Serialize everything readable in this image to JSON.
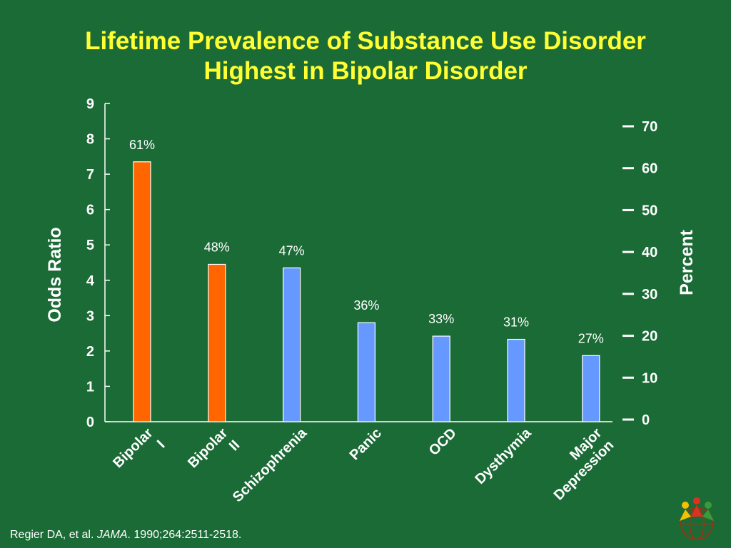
{
  "slide": {
    "title_line1": "Lifetime Prevalence of Substance Use Disorder",
    "title_line2": "Highest in Bipolar Disorder"
  },
  "citation": {
    "authors": "Regier DA, et al. ",
    "journal": "JAMA",
    "details": ". 1990;264:2511-2518."
  },
  "logo": {
    "icon": "people-globe-logo"
  },
  "colors": {
    "background": "#1b6b36",
    "title": "#ffff33",
    "bipolar_bar": "#ff6600",
    "other_bar": "#6699ff",
    "text": "#ffffff"
  },
  "chart_data": {
    "type": "bar",
    "title": "Lifetime Prevalence of Substance Use Disorder Highest in Bipolar Disorder",
    "categories": [
      "Bipolar I",
      "Bipolar II",
      "Schizophrenia",
      "Panic",
      "OCD",
      "Dysthymia",
      "Major Depression"
    ],
    "values": [
      7.35,
      4.45,
      4.35,
      2.8,
      2.42,
      2.33,
      1.87
    ],
    "data_labels": [
      "61%",
      "48%",
      "47%",
      "36%",
      "33%",
      "31%",
      "27%"
    ],
    "bar_colors": [
      "#ff6600",
      "#ff6600",
      "#6699ff",
      "#6699ff",
      "#6699ff",
      "#6699ff",
      "#6699ff"
    ],
    "ylabel": "Odds Ratio",
    "ylim": [
      0,
      9
    ],
    "yticks": [
      "0",
      "1",
      "2",
      "3",
      "4",
      "5",
      "6",
      "7",
      "8",
      "9"
    ],
    "y2label": "Percent",
    "y2lim": [
      0,
      70
    ],
    "y2ticks": [
      "0",
      "10",
      "20",
      "30",
      "40",
      "50",
      "60",
      "70"
    ],
    "grid": false,
    "legend": "none"
  }
}
